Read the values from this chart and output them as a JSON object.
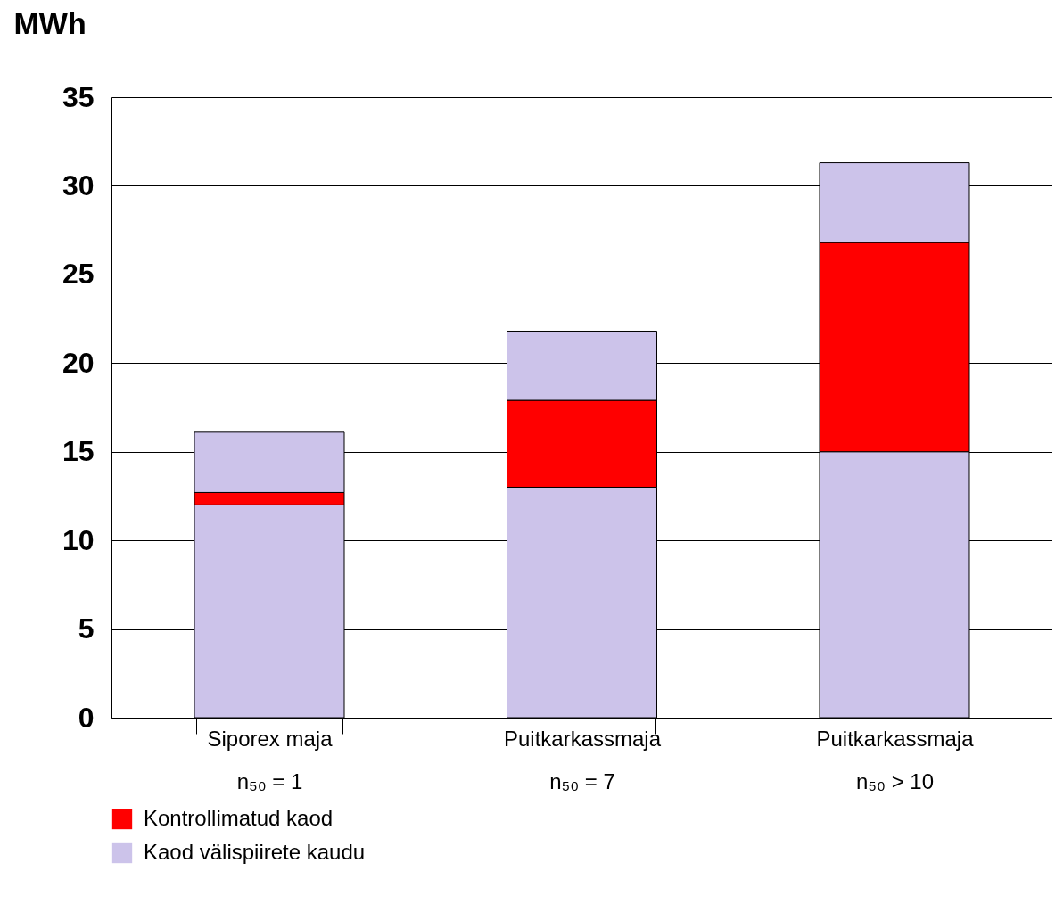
{
  "chart_data": {
    "type": "bar",
    "stacked": true,
    "ylabel": "MWh",
    "categories": [
      "Siporex maja\nn₅₀ = 1",
      "Puitkarkassmaja\nn₅₀ = 7",
      "Puitkarkassmaja\nn₅₀ > 10"
    ],
    "series": [
      {
        "name": "Kaod välispiirete kaudu",
        "color": "#ccc3ea",
        "values": [
          12,
          13,
          15
        ]
      },
      {
        "name": "Kontrollimatud kaod",
        "color": "#ff0000",
        "values": [
          0.7,
          4.9,
          11.8
        ]
      },
      {
        "color": "#ccc3ea",
        "values": [
          3.4,
          3.9,
          4.5
        ]
      }
    ],
    "ylim": [
      0,
      35
    ],
    "yticks": [
      0,
      5,
      10,
      15,
      20,
      25,
      30,
      35
    ],
    "grid": "y",
    "legend": "bottom"
  }
}
